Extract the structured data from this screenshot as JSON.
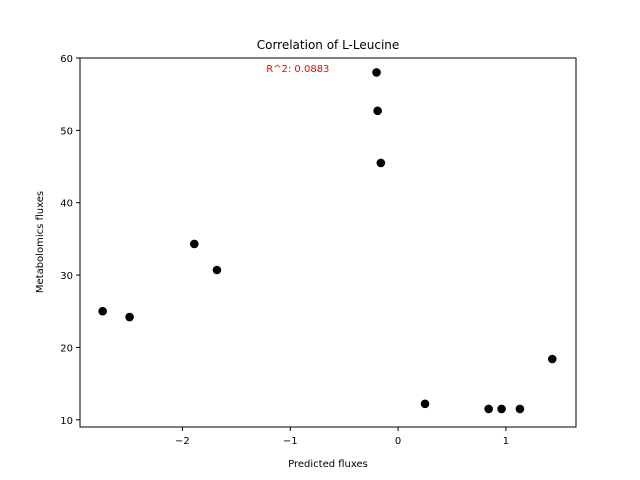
{
  "chart_data": {
    "type": "scatter",
    "title": "Correlation of L-Leucine",
    "xlabel": "Predicted fluxes",
    "ylabel": "Metabolomics fluxes",
    "xlim": [
      -2.95,
      1.65
    ],
    "ylim": [
      9,
      60
    ],
    "xticks": [
      -2,
      -1,
      0,
      1
    ],
    "xtick_labels": [
      "−2",
      "−1",
      "0",
      "1"
    ],
    "yticks": [
      10,
      20,
      30,
      40,
      50,
      60
    ],
    "ytick_labels": [
      "10",
      "20",
      "30",
      "40",
      "50",
      "60"
    ],
    "grid": false,
    "point_color": "#000000",
    "annotation": {
      "text": "R^2: 0.0883",
      "color": "#ff0000",
      "x": -0.93,
      "y": 58.5
    },
    "points": [
      {
        "x": -2.74,
        "y": 25.0
      },
      {
        "x": -2.49,
        "y": 24.2
      },
      {
        "x": -1.89,
        "y": 34.3
      },
      {
        "x": -1.68,
        "y": 30.7
      },
      {
        "x": -0.2,
        "y": 58.0
      },
      {
        "x": -0.19,
        "y": 52.7
      },
      {
        "x": -0.16,
        "y": 45.5
      },
      {
        "x": 0.25,
        "y": 12.2
      },
      {
        "x": 0.84,
        "y": 11.5
      },
      {
        "x": 0.96,
        "y": 11.5
      },
      {
        "x": 1.13,
        "y": 11.5
      },
      {
        "x": 1.43,
        "y": 18.4
      }
    ]
  }
}
